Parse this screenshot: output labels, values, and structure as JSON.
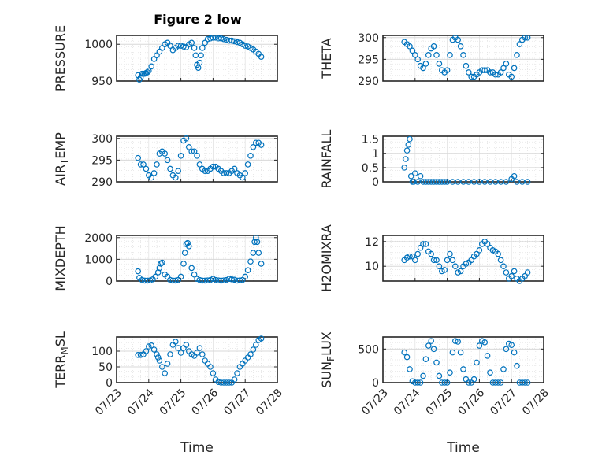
{
  "figure": {
    "title": "Figure 2 low",
    "marker_color": "#0072BD",
    "axis_color": "#262626",
    "grid_color": "#e3e3e3",
    "background": "#ffffff"
  },
  "chart_data": [
    {
      "type": "scatter",
      "ylabel": "PRESSURE",
      "title": "Figure 2 low",
      "xlabel": "",
      "xlim": [
        "07/23",
        "07/28"
      ],
      "ylim": [
        950,
        1012
      ],
      "yticks": [
        950,
        1000
      ],
      "xticks": [],
      "x": [
        "07/23 16:00",
        "07/23 17:00",
        "07/23 18:00",
        "07/23 19:00",
        "07/23 20:00",
        "07/23 21:00",
        "07/23 22:00",
        "07/23 23:00",
        "07/24 00:00",
        "07/24 02:00",
        "07/24 04:00",
        "07/24 06:00",
        "07/24 08:00",
        "07/24 10:00",
        "07/24 12:00",
        "07/24 14:00",
        "07/24 16:00",
        "07/24 18:00",
        "07/24 20:00",
        "07/24 22:00",
        "07/25 00:00",
        "07/25 02:00",
        "07/25 04:00",
        "07/25 06:00",
        "07/25 08:00",
        "07/25 10:00",
        "07/25 11:00",
        "07/25 12:00",
        "07/25 13:00",
        "07/25 14:00",
        "07/25 15:00",
        "07/25 16:00",
        "07/25 18:00",
        "07/25 20:00",
        "07/25 22:00",
        "07/26 00:00",
        "07/26 02:00",
        "07/26 04:00",
        "07/26 06:00",
        "07/26 08:00",
        "07/26 10:00",
        "07/26 12:00",
        "07/26 14:00",
        "07/26 16:00",
        "07/26 18:00",
        "07/26 20:00",
        "07/26 22:00",
        "07/27 00:00",
        "07/27 02:00",
        "07/27 04:00",
        "07/27 06:00",
        "07/27 08:00",
        "07/27 10:00",
        "07/27 12:00"
      ],
      "y": [
        958,
        952,
        955,
        960,
        960,
        960,
        961,
        962,
        964,
        970,
        980,
        985,
        990,
        995,
        1000,
        1002,
        998,
        992,
        995,
        998,
        998,
        997,
        996,
        1000,
        1002,
        995,
        985,
        972,
        968,
        975,
        985,
        995,
        1002,
        1007,
        1008,
        1009,
        1009,
        1008,
        1008,
        1007,
        1006,
        1005,
        1005,
        1004,
        1003,
        1002,
        1000,
        998,
        997,
        995,
        993,
        990,
        987,
        983
      ]
    },
    {
      "type": "scatter",
      "ylabel": "THETA",
      "xlim": [
        "07/23",
        "07/28"
      ],
      "ylim": [
        290,
        300.5
      ],
      "yticks": [
        290,
        295,
        300
      ],
      "xticks": [],
      "x": [
        "07/23 16:00",
        "07/23 18:00",
        "07/23 20:00",
        "07/23 22:00",
        "07/24 00:00",
        "07/24 02:00",
        "07/24 04:00",
        "07/24 06:00",
        "07/24 08:00",
        "07/24 10:00",
        "07/24 12:00",
        "07/24 14:00",
        "07/24 16:00",
        "07/24 18:00",
        "07/24 20:00",
        "07/24 22:00",
        "07/25 00:00",
        "07/25 02:00",
        "07/25 04:00",
        "07/25 06:00",
        "07/25 08:00",
        "07/25 10:00",
        "07/25 12:00",
        "07/25 14:00",
        "07/25 16:00",
        "07/25 18:00",
        "07/25 20:00",
        "07/25 22:00",
        "07/26 00:00",
        "07/26 02:00",
        "07/26 04:00",
        "07/26 06:00",
        "07/26 08:00",
        "07/26 10:00",
        "07/26 12:00",
        "07/26 14:00",
        "07/26 16:00",
        "07/26 18:00",
        "07/26 20:00",
        "07/26 22:00",
        "07/27 00:00",
        "07/27 02:00",
        "07/27 04:00",
        "07/27 06:00",
        "07/27 08:00",
        "07/27 10:00",
        "07/27 12:00"
      ],
      "y": [
        299,
        298.5,
        298,
        297,
        296,
        295,
        293.5,
        293,
        294,
        296,
        297.5,
        298,
        296,
        294,
        292.5,
        292,
        292.5,
        296,
        299.5,
        300,
        299.5,
        298,
        296,
        293.5,
        292,
        291,
        291,
        291.5,
        292,
        292.5,
        292.5,
        292.5,
        292,
        292,
        291.5,
        291.5,
        292,
        293,
        294,
        291.5,
        291,
        293,
        296,
        298.5,
        299.5,
        300,
        300
      ]
    },
    {
      "type": "scatter",
      "ylabel": "AIR_TEMP",
      "xlim": [
        "07/23",
        "07/28"
      ],
      "ylim": [
        290,
        300.5
      ],
      "yticks": [
        290,
        295,
        300
      ],
      "xticks": [],
      "x": [
        "07/23 16:00",
        "07/23 18:00",
        "07/23 20:00",
        "07/23 22:00",
        "07/24 00:00",
        "07/24 02:00",
        "07/24 04:00",
        "07/24 06:00",
        "07/24 08:00",
        "07/24 10:00",
        "07/24 12:00",
        "07/24 14:00",
        "07/24 16:00",
        "07/24 18:00",
        "07/24 20:00",
        "07/24 22:00",
        "07/25 00:00",
        "07/25 02:00",
        "07/25 04:00",
        "07/25 06:00",
        "07/25 08:00",
        "07/25 10:00",
        "07/25 12:00",
        "07/25 14:00",
        "07/25 16:00",
        "07/25 18:00",
        "07/25 20:00",
        "07/25 22:00",
        "07/26 00:00",
        "07/26 02:00",
        "07/26 04:00",
        "07/26 06:00",
        "07/26 08:00",
        "07/26 10:00",
        "07/26 12:00",
        "07/26 14:00",
        "07/26 16:00",
        "07/26 18:00",
        "07/26 20:00",
        "07/26 22:00",
        "07/27 00:00",
        "07/27 02:00",
        "07/27 04:00",
        "07/27 06:00",
        "07/27 08:00",
        "07/27 10:00",
        "07/27 12:00"
      ],
      "y": [
        295.5,
        294,
        294,
        293,
        291.5,
        291,
        292,
        294,
        296.5,
        297,
        296.5,
        295,
        293,
        291.5,
        291,
        292.5,
        296,
        299.5,
        300,
        298,
        297,
        297,
        296,
        294,
        293,
        292.5,
        292.5,
        293,
        293.5,
        293.5,
        293,
        292.5,
        292,
        292,
        292,
        292.5,
        293,
        292,
        291.5,
        291,
        292,
        294,
        296,
        298,
        299,
        299,
        298.5
      ]
    },
    {
      "type": "scatter",
      "ylabel": "RAINFALL",
      "xlim": [
        "07/23",
        "07/28"
      ],
      "ylim": [
        0,
        1.6
      ],
      "yticks": [
        0,
        0.5,
        1,
        1.5
      ],
      "xticks": [],
      "x": [
        "07/23 16:00",
        "07/23 17:00",
        "07/23 18:00",
        "07/23 19:00",
        "07/23 20:00",
        "07/23 21:00",
        "07/23 22:00",
        "07/23 23:00",
        "07/24 00:00",
        "07/24 02:00",
        "07/24 04:00",
        "07/24 06:00",
        "07/24 08:00",
        "07/24 10:00",
        "07/24 12:00",
        "07/24 14:00",
        "07/24 16:00",
        "07/24 18:00",
        "07/24 20:00",
        "07/24 22:00",
        "07/25 00:00",
        "07/25 04:00",
        "07/25 08:00",
        "07/25 12:00",
        "07/25 16:00",
        "07/25 20:00",
        "07/26 00:00",
        "07/26 04:00",
        "07/26 08:00",
        "07/26 12:00",
        "07/26 16:00",
        "07/26 20:00",
        "07/27 00:00",
        "07/27 02:00",
        "07/27 04:00",
        "07/27 08:00",
        "07/27 12:00"
      ],
      "y": [
        0.5,
        0.8,
        1.1,
        1.3,
        1.5,
        0.2,
        0,
        0,
        0.3,
        0,
        0.2,
        0,
        0,
        0,
        0,
        0,
        0,
        0,
        0,
        0,
        0,
        0,
        0,
        0,
        0,
        0,
        0,
        0,
        0,
        0,
        0,
        0,
        0.1,
        0.2,
        0,
        0,
        0
      ]
    },
    {
      "type": "scatter",
      "ylabel": "MIXDEPTH",
      "xlim": [
        "07/23",
        "07/28"
      ],
      "ylim": [
        0,
        2100
      ],
      "yticks": [
        0,
        1000,
        2000
      ],
      "xticks": [],
      "x": [
        "07/23 16:00",
        "07/23 17:00",
        "07/23 19:00",
        "07/23 21:00",
        "07/23 23:00",
        "07/24 01:00",
        "07/24 03:00",
        "07/24 05:00",
        "07/24 07:00",
        "07/24 08:00",
        "07/24 09:00",
        "07/24 10:00",
        "07/24 12:00",
        "07/24 14:00",
        "07/24 16:00",
        "07/24 18:00",
        "07/24 20:00",
        "07/24 22:00",
        "07/25 00:00",
        "07/25 02:00",
        "07/25 03:00",
        "07/25 04:00",
        "07/25 05:00",
        "07/25 06:00",
        "07/25 08:00",
        "07/25 10:00",
        "07/25 12:00",
        "07/25 14:00",
        "07/25 16:00",
        "07/25 18:00",
        "07/25 20:00",
        "07/25 22:00",
        "07/26 00:00",
        "07/26 02:00",
        "07/26 04:00",
        "07/26 06:00",
        "07/26 08:00",
        "07/26 10:00",
        "07/26 12:00",
        "07/26 14:00",
        "07/26 16:00",
        "07/26 18:00",
        "07/26 20:00",
        "07/26 22:00",
        "07/27 00:00",
        "07/27 02:00",
        "07/27 04:00",
        "07/27 06:00",
        "07/27 07:00",
        "07/27 08:00",
        "07/27 09:00",
        "07/27 10:00",
        "07/27 12:00"
      ],
      "y": [
        450,
        150,
        50,
        20,
        20,
        30,
        80,
        200,
        400,
        600,
        800,
        850,
        300,
        200,
        50,
        20,
        20,
        50,
        200,
        800,
        1300,
        1700,
        1750,
        1600,
        600,
        300,
        100,
        50,
        20,
        20,
        30,
        50,
        100,
        50,
        30,
        20,
        30,
        50,
        100,
        80,
        60,
        20,
        30,
        50,
        200,
        500,
        900,
        1300,
        1800,
        2000,
        1800,
        1300,
        800
      ]
    },
    {
      "type": "scatter",
      "ylabel": "H2OMIXRA",
      "xlim": [
        "07/23",
        "07/28"
      ],
      "ylim": [
        8.8,
        12.5
      ],
      "yticks": [
        10,
        12
      ],
      "xticks": [],
      "x": [
        "07/23 16:00",
        "07/23 18:00",
        "07/23 20:00",
        "07/23 22:00",
        "07/24 00:00",
        "07/24 02:00",
        "07/24 04:00",
        "07/24 06:00",
        "07/24 08:00",
        "07/24 10:00",
        "07/24 12:00",
        "07/24 14:00",
        "07/24 16:00",
        "07/24 18:00",
        "07/24 20:00",
        "07/24 22:00",
        "07/25 00:00",
        "07/25 02:00",
        "07/25 04:00",
        "07/25 06:00",
        "07/25 08:00",
        "07/25 10:00",
        "07/25 12:00",
        "07/25 14:00",
        "07/25 16:00",
        "07/25 18:00",
        "07/25 20:00",
        "07/25 22:00",
        "07/26 00:00",
        "07/26 02:00",
        "07/26 04:00",
        "07/26 06:00",
        "07/26 08:00",
        "07/26 10:00",
        "07/26 12:00",
        "07/26 14:00",
        "07/26 16:00",
        "07/26 18:00",
        "07/26 20:00",
        "07/26 22:00",
        "07/27 00:00",
        "07/27 02:00",
        "07/27 04:00",
        "07/27 06:00",
        "07/27 08:00",
        "07/27 10:00",
        "07/27 12:00"
      ],
      "y": [
        10.5,
        10.7,
        10.8,
        10.8,
        10.5,
        11,
        11.5,
        11.8,
        11.8,
        11.2,
        11,
        10.5,
        10.5,
        10,
        9.6,
        9.7,
        10.5,
        11,
        10.5,
        10,
        9.5,
        9.6,
        10,
        10.2,
        10.3,
        10.5,
        10.8,
        11,
        11.3,
        11.8,
        12,
        11.8,
        11.5,
        11.3,
        11.2,
        11,
        10.5,
        10,
        9.5,
        9,
        9.2,
        9.6,
        9,
        8.8,
        9,
        9.2,
        9.5
      ]
    },
    {
      "type": "scatter",
      "ylabel": "TERR_MSL",
      "xlabel": "Time",
      "xlim": [
        "07/23",
        "07/28"
      ],
      "ylim": [
        0,
        145
      ],
      "yticks": [
        0,
        50,
        100
      ],
      "xticks": [
        "07/23",
        "07/24",
        "07/25",
        "07/26",
        "07/27",
        "07/28"
      ],
      "x": [
        "07/23 16:00",
        "07/23 18:00",
        "07/23 20:00",
        "07/23 22:00",
        "07/24 00:00",
        "07/24 02:00",
        "07/24 04:00",
        "07/24 06:00",
        "07/24 07:00",
        "07/24 08:00",
        "07/24 10:00",
        "07/24 12:00",
        "07/24 14:00",
        "07/24 16:00",
        "07/24 18:00",
        "07/24 20:00",
        "07/24 22:00",
        "07/25 00:00",
        "07/25 02:00",
        "07/25 04:00",
        "07/25 06:00",
        "07/25 08:00",
        "07/25 10:00",
        "07/25 12:00",
        "07/25 14:00",
        "07/25 16:00",
        "07/25 18:00",
        "07/25 20:00",
        "07/25 22:00",
        "07/26 00:00",
        "07/26 02:00",
        "07/26 04:00",
        "07/26 06:00",
        "07/26 08:00",
        "07/26 10:00",
        "07/26 12:00",
        "07/26 14:00",
        "07/26 16:00",
        "07/26 18:00",
        "07/26 20:00",
        "07/26 22:00",
        "07/27 00:00",
        "07/27 02:00",
        "07/27 04:00",
        "07/27 06:00",
        "07/27 08:00",
        "07/27 10:00",
        "07/27 12:00"
      ],
      "y": [
        88,
        88,
        90,
        100,
        115,
        118,
        105,
        90,
        80,
        70,
        50,
        30,
        60,
        90,
        120,
        130,
        110,
        95,
        110,
        120,
        100,
        90,
        85,
        95,
        110,
        90,
        70,
        60,
        50,
        30,
        10,
        2,
        0,
        0,
        0,
        0,
        0,
        10,
        30,
        50,
        60,
        70,
        80,
        90,
        105,
        120,
        135,
        140
      ]
    },
    {
      "type": "scatter",
      "ylabel": "SUN_FLUX",
      "xlabel": "Time",
      "xlim": [
        "07/23",
        "07/28"
      ],
      "ylim": [
        0,
        680
      ],
      "yticks": [
        0,
        500
      ],
      "xticks": [
        "07/23",
        "07/24",
        "07/25",
        "07/26",
        "07/27",
        "07/28"
      ],
      "x": [
        "07/23 16:00",
        "07/23 18:00",
        "07/23 20:00",
        "07/23 22:00",
        "07/24 00:00",
        "07/24 02:00",
        "07/24 04:00",
        "07/24 06:00",
        "07/24 08:00",
        "07/24 10:00",
        "07/24 12:00",
        "07/24 14:00",
        "07/24 16:00",
        "07/24 18:00",
        "07/24 20:00",
        "07/24 22:00",
        "07/25 00:00",
        "07/25 02:00",
        "07/25 04:00",
        "07/25 06:00",
        "07/25 08:00",
        "07/25 10:00",
        "07/25 12:00",
        "07/25 14:00",
        "07/25 16:00",
        "07/25 18:00",
        "07/25 20:00",
        "07/25 22:00",
        "07/26 00:00",
        "07/26 02:00",
        "07/26 04:00",
        "07/26 06:00",
        "07/26 08:00",
        "07/26 10:00",
        "07/26 12:00",
        "07/26 14:00",
        "07/26 16:00",
        "07/26 18:00",
        "07/26 20:00",
        "07/26 22:00",
        "07/27 00:00",
        "07/27 02:00",
        "07/27 04:00",
        "07/27 06:00",
        "07/27 08:00",
        "07/27 10:00",
        "07/27 12:00"
      ],
      "y": [
        450,
        380,
        200,
        20,
        0,
        0,
        0,
        100,
        350,
        550,
        620,
        500,
        300,
        100,
        0,
        0,
        0,
        150,
        450,
        620,
        610,
        450,
        200,
        50,
        0,
        0,
        50,
        300,
        550,
        620,
        600,
        400,
        150,
        0,
        0,
        0,
        0,
        200,
        500,
        580,
        560,
        450,
        250,
        0,
        0,
        0,
        0
      ]
    }
  ]
}
